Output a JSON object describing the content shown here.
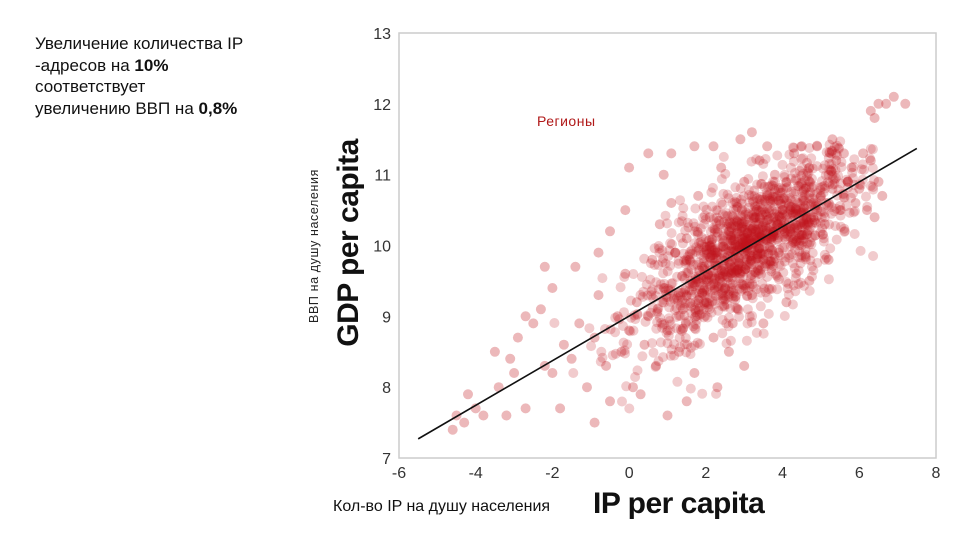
{
  "annotation": {
    "line1": "Увеличение количества IP",
    "line2_pre": "-адресов на ",
    "line2_bold": "10%",
    "line3": "соответствует",
    "line4_pre": "увеличению ВВП на ",
    "line4_bold": "0,8%"
  },
  "labels": {
    "y_ru": "ВВП на душу населения",
    "y_en": "GDP per capita",
    "x_ru": "Кол-во IP на душу населения",
    "x_en": "IP per capita",
    "regions": "Регионы"
  },
  "colors": {
    "points": "#c0141c",
    "line": "#111111",
    "frame": "#cccccc"
  },
  "chart_data": {
    "type": "scatter",
    "xlabel": "IP per capita",
    "ylabel": "GDP per capita",
    "xlim": [
      -6,
      8
    ],
    "ylim": [
      7,
      13
    ],
    "xticks": [
      -6,
      -4,
      -2,
      0,
      2,
      4,
      6,
      8
    ],
    "yticks": [
      7,
      8,
      9,
      10,
      11,
      12,
      13
    ],
    "grid": false,
    "trend_line": {
      "x": [
        -5.5,
        7.5
      ],
      "y": [
        7.27,
        11.37
      ]
    },
    "points": [
      [
        -4.6,
        7.4
      ],
      [
        -4.3,
        7.5
      ],
      [
        -4.2,
        7.9
      ],
      [
        -4.0,
        7.7
      ],
      [
        -3.8,
        7.6
      ],
      [
        -3.4,
        8.0
      ],
      [
        -3.0,
        8.2
      ],
      [
        -2.7,
        7.7
      ],
      [
        -3.5,
        8.5
      ],
      [
        -3.1,
        8.4
      ],
      [
        -2.9,
        8.7
      ],
      [
        -2.7,
        9.0
      ],
      [
        -2.5,
        8.9
      ],
      [
        -2.3,
        9.1
      ],
      [
        -2.2,
        8.3
      ],
      [
        -2.0,
        8.2
      ],
      [
        -1.7,
        8.6
      ],
      [
        -1.5,
        8.4
      ],
      [
        -1.3,
        8.9
      ],
      [
        -1.1,
        8.0
      ],
      [
        -0.9,
        8.7
      ],
      [
        -0.8,
        9.3
      ],
      [
        -0.6,
        8.3
      ],
      [
        -0.5,
        7.8
      ],
      [
        -0.3,
        9.0
      ],
      [
        -0.2,
        8.5
      ],
      [
        -0.1,
        9.6
      ],
      [
        0.0,
        8.8
      ],
      [
        0.1,
        8.0
      ],
      [
        0.2,
        9.2
      ],
      [
        0.3,
        7.9
      ],
      [
        0.4,
        8.6
      ],
      [
        0.5,
        9.0
      ],
      [
        0.6,
        9.8
      ],
      [
        0.7,
        8.3
      ],
      [
        0.8,
        10.3
      ],
      [
        0.9,
        9.4
      ],
      [
        1.0,
        8.8
      ],
      [
        1.1,
        10.6
      ],
      [
        1.2,
        9.9
      ],
      [
        1.3,
        8.5
      ],
      [
        1.4,
        9.1
      ],
      [
        1.5,
        10.1
      ],
      [
        1.6,
        9.5
      ],
      [
        1.7,
        8.2
      ],
      [
        1.8,
        10.7
      ],
      [
        1.9,
        9.7
      ],
      [
        2.0,
        9.2
      ],
      [
        2.1,
        10.4
      ],
      [
        2.2,
        8.7
      ],
      [
        2.3,
        9.9
      ],
      [
        2.4,
        11.1
      ],
      [
        2.5,
        9.4
      ],
      [
        2.6,
        10.2
      ],
      [
        2.7,
        8.9
      ],
      [
        2.8,
        10.6
      ],
      [
        2.9,
        9.6
      ],
      [
        3.0,
        10.9
      ],
      [
        3.1,
        10.0
      ],
      [
        3.2,
        9.3
      ],
      [
        3.3,
        10.4
      ],
      [
        3.4,
        11.2
      ],
      [
        3.5,
        9.8
      ],
      [
        3.6,
        10.7
      ],
      [
        3.7,
        10.1
      ],
      [
        3.8,
        11.0
      ],
      [
        3.9,
        9.9
      ],
      [
        4.0,
        10.5
      ],
      [
        4.1,
        10.9
      ],
      [
        4.2,
        10.2
      ],
      [
        4.3,
        11.3
      ],
      [
        4.4,
        10.6
      ],
      [
        4.5,
        10.0
      ],
      [
        4.6,
        10.8
      ],
      [
        4.7,
        11.1
      ],
      [
        4.8,
        10.4
      ],
      [
        4.9,
        11.4
      ],
      [
        5.0,
        10.7
      ],
      [
        5.1,
        10.3
      ],
      [
        5.2,
        11.0
      ],
      [
        5.3,
        10.8
      ],
      [
        5.4,
        11.2
      ],
      [
        5.5,
        10.5
      ],
      [
        5.6,
        11.3
      ],
      [
        5.7,
        10.9
      ],
      [
        5.8,
        11.1
      ],
      [
        5.9,
        10.6
      ],
      [
        6.0,
        10.8
      ],
      [
        6.2,
        10.5
      ],
      [
        6.4,
        10.4
      ],
      [
        6.1,
        11.3
      ],
      [
        6.3,
        11.2
      ],
      [
        6.5,
        10.9
      ],
      [
        6.6,
        10.7
      ],
      [
        6.4,
        11.8
      ],
      [
        6.5,
        12.0
      ],
      [
        6.7,
        12.0
      ],
      [
        6.9,
        12.1
      ],
      [
        7.2,
        12.0
      ],
      [
        6.3,
        11.9
      ],
      [
        3.2,
        11.6
      ],
      [
        1.7,
        11.4
      ],
      [
        1.1,
        11.3
      ],
      [
        0.5,
        11.3
      ],
      [
        -0.1,
        10.5
      ],
      [
        -0.5,
        10.2
      ],
      [
        -0.8,
        9.9
      ],
      [
        -1.4,
        9.7
      ],
      [
        -2.0,
        9.4
      ],
      [
        -2.2,
        9.7
      ],
      [
        0.0,
        11.1
      ],
      [
        0.9,
        11.0
      ],
      [
        2.2,
        11.4
      ],
      [
        2.9,
        11.5
      ],
      [
        3.6,
        11.4
      ],
      [
        4.5,
        11.4
      ],
      [
        5.3,
        11.5
      ],
      [
        1.5,
        7.8
      ],
      [
        2.3,
        8.0
      ],
      [
        3.0,
        8.3
      ],
      [
        1.0,
        7.6
      ],
      [
        -0.9,
        7.5
      ],
      [
        -1.8,
        7.7
      ],
      [
        -4.5,
        7.6
      ],
      [
        -3.2,
        7.6
      ],
      [
        2.6,
        8.5
      ],
      [
        3.5,
        8.9
      ],
      [
        4.1,
        9.2
      ],
      [
        4.7,
        9.5
      ],
      [
        5.2,
        9.8
      ]
    ]
  }
}
